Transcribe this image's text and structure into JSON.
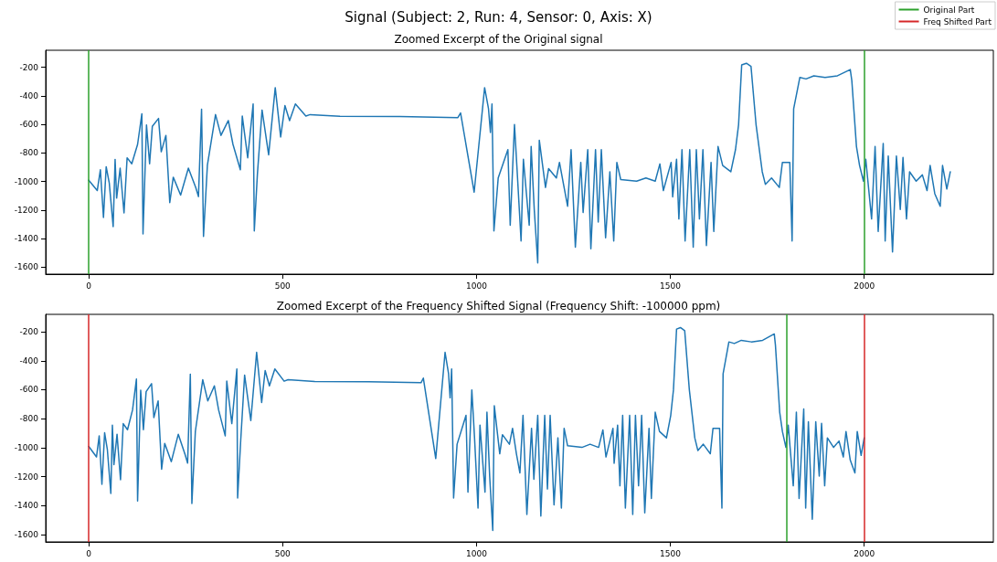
{
  "chart_data": [
    {
      "type": "line",
      "title": "Signal (Subject: 2, Run: 4, Sensor: 0, Axis: X)",
      "subtitle": "Zoomed Excerpt of the Original signal",
      "color": "#1f77b4",
      "line_style": "solid",
      "marker": "none",
      "grid": false,
      "legend": "top right",
      "x": [
        0,
        22,
        30,
        38,
        45,
        53,
        63,
        68,
        72,
        81,
        91,
        99,
        111,
        126,
        137,
        140,
        149,
        157,
        164,
        180,
        187,
        199,
        209,
        218,
        237,
        257,
        276,
        283,
        291,
        296,
        306,
        327,
        341,
        360,
        372,
        391,
        396,
        410,
        424,
        427,
        435,
        447,
        464,
        481,
        495,
        506,
        518,
        533,
        560,
        571,
        648,
        802,
        952,
        959,
        994,
        1021,
        1031,
        1036,
        1040,
        1045,
        1056,
        1081,
        1087,
        1098,
        1105,
        1115,
        1121,
        1136,
        1141,
        1149,
        1158,
        1162,
        1178,
        1186,
        1206,
        1214,
        1226,
        1235,
        1244,
        1255,
        1269,
        1275,
        1287,
        1295,
        1307,
        1314,
        1322,
        1333,
        1344,
        1354,
        1362,
        1372,
        1413,
        1437,
        1461,
        1473,
        1482,
        1502,
        1506,
        1516,
        1522,
        1530,
        1538,
        1550,
        1559,
        1567,
        1575,
        1584,
        1593,
        1605,
        1612,
        1623,
        1635,
        1656,
        1668,
        1676,
        1684,
        1696,
        1708,
        1721,
        1737,
        1745,
        1761,
        1781,
        1789,
        1808,
        1814,
        1818,
        1834,
        1850,
        1870,
        1899,
        1931,
        1964,
        1968,
        1980,
        1988,
        1998,
        2004,
        2019,
        2028,
        2036,
        2049,
        2054,
        2062,
        2073,
        2083,
        2093,
        2100,
        2109,
        2117,
        2134,
        2150,
        2162,
        2170,
        2182,
        2196,
        2202,
        2213,
        2222
      ],
      "values": [
        -991,
        -1064,
        -918,
        -1253,
        -897,
        -1012,
        -1316,
        -845,
        -1117,
        -907,
        -1221,
        -834,
        -876,
        -740,
        -526,
        -1368,
        -604,
        -876,
        -614,
        -558,
        -792,
        -677,
        -1148,
        -970,
        -1096,
        -907,
        -1043,
        -1106,
        -493,
        -1385,
        -887,
        -531,
        -677,
        -573,
        -740,
        -918,
        -541,
        -834,
        -457,
        -1347,
        -949,
        -499,
        -813,
        -342,
        -688,
        -468,
        -573,
        -457,
        -541,
        -531,
        -543,
        -545,
        -552,
        -520,
        -1075,
        -342,
        -489,
        -656,
        -457,
        -1347,
        -976,
        -777,
        -1307,
        -601,
        -932,
        -1417,
        -844,
        -1307,
        -755,
        -1196,
        -1571,
        -711,
        -1042,
        -910,
        -976,
        -866,
        -1042,
        -1174,
        -777,
        -1461,
        -866,
        -1218,
        -777,
        -1472,
        -777,
        -1285,
        -777,
        -1395,
        -932,
        -1417,
        -866,
        -987,
        -998,
        -976,
        -998,
        -877,
        -1064,
        -866,
        -1108,
        -844,
        -1263,
        -777,
        -1417,
        -777,
        -1461,
        -777,
        -1263,
        -777,
        -1450,
        -866,
        -1351,
        -755,
        -888,
        -932,
        -777,
        -601,
        -182,
        -171,
        -193,
        -601,
        -932,
        -1020,
        -976,
        -1042,
        -866,
        -866,
        -1417,
        -491,
        -270,
        -281,
        -259,
        -270,
        -259,
        -215,
        -292,
        -755,
        -888,
        -998,
        -844,
        -1263,
        -755,
        -1351,
        -733,
        -1417,
        -821,
        -1494,
        -821,
        -1196,
        -832,
        -1263,
        -932,
        -998,
        -954,
        -1064,
        -888,
        -1086,
        -1174,
        -888,
        -1053,
        -932
      ],
      "xlim": [
        -111,
        2333
      ],
      "xticks": [
        0,
        500,
        1000,
        1500,
        2000
      ],
      "ylim": [
        -1650,
        -80
      ],
      "yticks": [
        -1600,
        -1400,
        -1200,
        -1000,
        -800,
        -600,
        -400,
        -200
      ],
      "ref_lines": [
        {
          "axis": "x",
          "value": 0,
          "label": "Original Part",
          "color": "#2ca02c"
        },
        {
          "axis": "x",
          "value": 2000,
          "color": "#2ca02c"
        }
      ]
    },
    {
      "type": "line",
      "title": "Zoomed Excerpt of the Frequency Shifted Signal (Frequency Shift: -100000 ppm)",
      "color": "#1f77b4",
      "line_style": "solid",
      "marker": "none",
      "grid": false,
      "x": [
        0,
        20,
        27,
        34,
        41,
        48,
        57,
        61,
        65,
        73,
        82,
        89,
        100,
        113,
        123,
        126,
        134,
        141,
        148,
        162,
        168,
        179,
        188,
        196,
        213,
        231,
        248,
        255,
        262,
        266,
        275,
        294,
        307,
        324,
        335,
        352,
        356,
        369,
        382,
        384,
        392,
        402,
        418,
        433,
        446,
        455,
        466,
        480,
        504,
        514,
        583,
        722,
        857,
        863,
        895,
        919,
        928,
        932,
        936,
        941,
        950,
        973,
        978,
        988,
        995,
        1004,
        1009,
        1022,
        1027,
        1034,
        1042,
        1046,
        1060,
        1067,
        1085,
        1093,
        1103,
        1112,
        1120,
        1130,
        1142,
        1148,
        1158,
        1166,
        1176,
        1183,
        1190,
        1200,
        1210,
        1219,
        1226,
        1235,
        1272,
        1293,
        1315,
        1326,
        1334,
        1352,
        1355,
        1364,
        1370,
        1377,
        1384,
        1395,
        1403,
        1410,
        1418,
        1426,
        1434,
        1445,
        1451,
        1461,
        1472,
        1490,
        1501,
        1508,
        1516,
        1526,
        1537,
        1549,
        1563,
        1571,
        1585,
        1603,
        1610,
        1627,
        1633,
        1636,
        1651,
        1665,
        1683,
        1709,
        1738,
        1768,
        1771,
        1782,
        1789,
        1798,
        1804,
        1817,
        1825,
        1832,
        1844,
        1849,
        1856,
        1866,
        1875,
        1884,
        1890,
        1898,
        1905,
        1921,
        1935,
        1946,
        1953,
        1964,
        1976,
        1982,
        1992,
        2000
      ],
      "values": [
        -991,
        -1064,
        -918,
        -1253,
        -897,
        -1012,
        -1316,
        -845,
        -1117,
        -907,
        -1221,
        -834,
        -876,
        -740,
        -526,
        -1368,
        -604,
        -876,
        -614,
        -558,
        -792,
        -677,
        -1148,
        -970,
        -1096,
        -907,
        -1043,
        -1106,
        -493,
        -1385,
        -887,
        -531,
        -677,
        -573,
        -740,
        -918,
        -541,
        -834,
        -457,
        -1347,
        -949,
        -499,
        -813,
        -342,
        -688,
        -468,
        -573,
        -457,
        -541,
        -531,
        -543,
        -545,
        -552,
        -520,
        -1075,
        -342,
        -489,
        -656,
        -457,
        -1347,
        -976,
        -777,
        -1307,
        -601,
        -932,
        -1417,
        -844,
        -1307,
        -755,
        -1196,
        -1571,
        -711,
        -1042,
        -910,
        -976,
        -866,
        -1042,
        -1174,
        -777,
        -1461,
        -866,
        -1218,
        -777,
        -1472,
        -777,
        -1285,
        -777,
        -1395,
        -932,
        -1417,
        -866,
        -987,
        -998,
        -976,
        -998,
        -877,
        -1064,
        -866,
        -1108,
        -844,
        -1263,
        -777,
        -1417,
        -777,
        -1461,
        -777,
        -1263,
        -777,
        -1450,
        -866,
        -1351,
        -755,
        -888,
        -932,
        -777,
        -601,
        -182,
        -171,
        -193,
        -601,
        -932,
        -1020,
        -976,
        -1042,
        -866,
        -866,
        -1417,
        -491,
        -270,
        -281,
        -259,
        -270,
        -259,
        -215,
        -292,
        -755,
        -888,
        -998,
        -844,
        -1263,
        -755,
        -1351,
        -733,
        -1417,
        -821,
        -1494,
        -821,
        -1196,
        -832,
        -1263,
        -932,
        -998,
        -954,
        -1064,
        -888,
        -1086,
        -1174,
        -888,
        -1053,
        -932
      ],
      "xlim": [
        -111,
        2333
      ],
      "xticks": [
        0,
        500,
        1000,
        1500,
        2000
      ],
      "ylim": [
        -1650,
        -80
      ],
      "yticks": [
        -1600,
        -1400,
        -1200,
        -1000,
        -800,
        -600,
        -400,
        -200
      ],
      "ref_lines": [
        {
          "axis": "x",
          "value": 0,
          "label": "Freq Shifted Part",
          "color": "#d62728"
        },
        {
          "axis": "x",
          "value": 2000,
          "color": "#d62728"
        },
        {
          "axis": "x",
          "value": 1800,
          "color": "#2ca02c"
        }
      ]
    }
  ]
}
